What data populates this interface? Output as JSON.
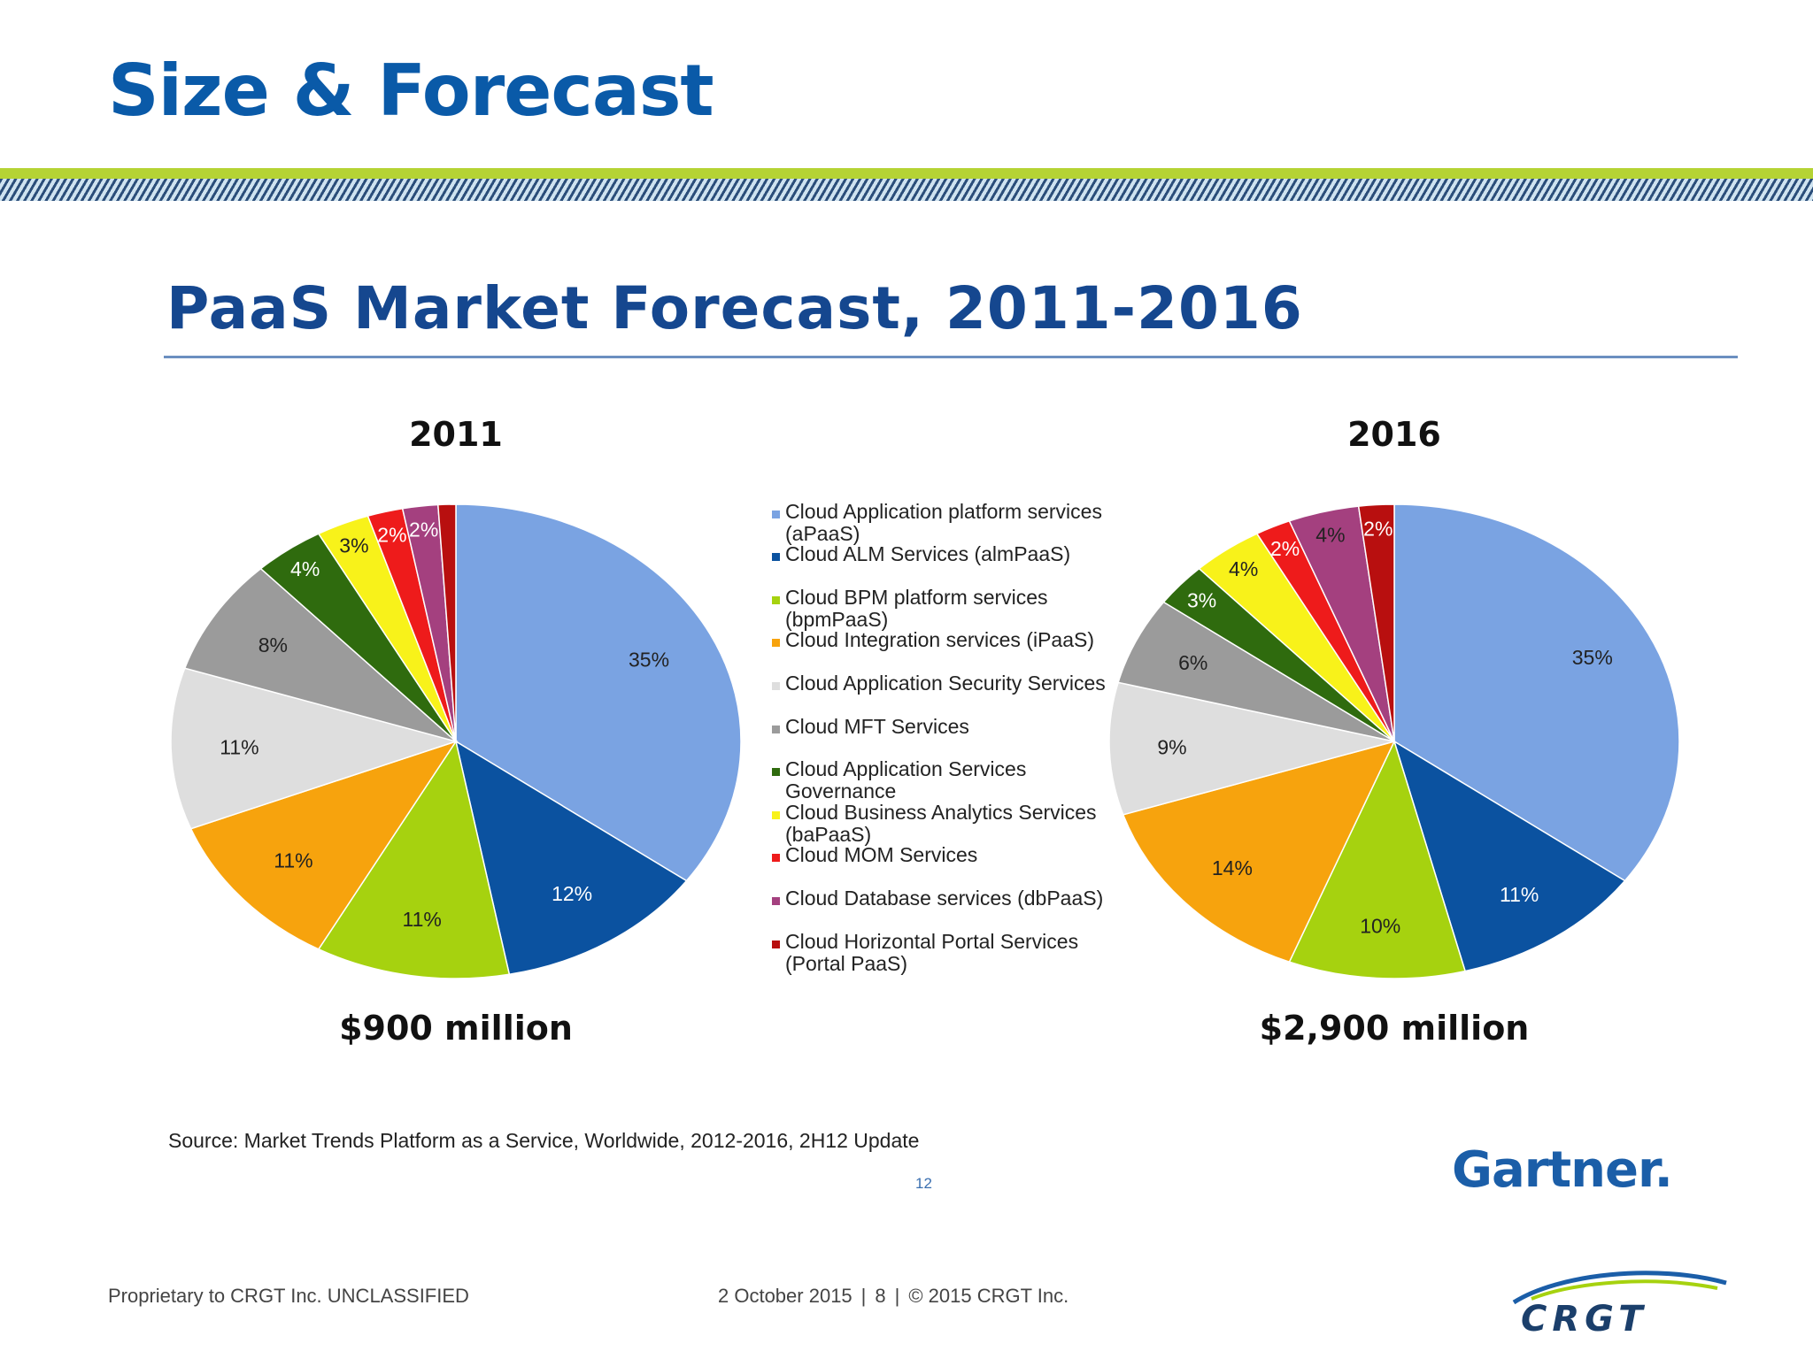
{
  "slide": {
    "title": "Size & Forecast"
  },
  "chart_title": "PaaS Market Forecast, 2011-2016",
  "legend": [
    {
      "label": "Cloud Application platform services (aPaaS)",
      "color": "#7aa3e2"
    },
    {
      "label": "Cloud ALM Services (almPaaS)",
      "color": "#0b52a0"
    },
    {
      "label": "Cloud BPM platform services (bpmPaaS)",
      "color": "#a6d20f"
    },
    {
      "label": "Cloud Integration services (iPaaS)",
      "color": "#f7a30d"
    },
    {
      "label": "Cloud Application Security Services",
      "color": "#dedede"
    },
    {
      "label": "Cloud MFT Services",
      "color": "#9b9b9b"
    },
    {
      "label": "Cloud Application Services Governance",
      "color": "#2f6b0e"
    },
    {
      "label": "Cloud Business Analytics Services (baPaaS)",
      "color": "#f8f21a"
    },
    {
      "label": "Cloud MOM Services",
      "color": "#ee1b1b"
    },
    {
      "label": "Cloud Database services (dbPaaS)",
      "color": "#a4407f"
    },
    {
      "label": "Cloud Horizontal Portal Services (Portal PaaS)",
      "color": "#b80f0f"
    }
  ],
  "chart_data": [
    {
      "type": "pie",
      "title": "2011",
      "total": "$900 million",
      "labels": [
        "Cloud Application platform services (aPaaS)",
        "Cloud ALM Services (almPaaS)",
        "Cloud BPM platform services (bpmPaaS)",
        "Cloud Integration services (iPaaS)",
        "Cloud Application Security Services",
        "Cloud MFT Services",
        "Cloud Application Services Governance",
        "Cloud Business Analytics Services (baPaaS)",
        "Cloud MOM Services",
        "Cloud Database services (dbPaaS)",
        "Cloud Horizontal Portal Services (Portal PaaS)"
      ],
      "values": [
        35,
        12,
        11,
        11,
        11,
        8,
        4,
        3,
        2,
        2,
        1
      ],
      "value_labels": [
        "35%",
        "12%",
        "11%",
        "11%",
        "11%",
        "8%",
        "4%",
        "3%",
        "2%",
        "2%",
        "1%"
      ]
    },
    {
      "type": "pie",
      "title": "2016",
      "total": "$2,900 million",
      "labels": [
        "Cloud Application platform services (aPaaS)",
        "Cloud ALM Services (almPaaS)",
        "Cloud BPM platform services (bpmPaaS)",
        "Cloud Integration services (iPaaS)",
        "Cloud Application Security Services",
        "Cloud MFT Services",
        "Cloud Application Services Governance",
        "Cloud Business Analytics Services (baPaaS)",
        "Cloud MOM Services",
        "Cloud Database services (dbPaaS)",
        "Cloud Horizontal Portal Services (Portal PaaS)"
      ],
      "values": [
        35,
        11,
        10,
        14,
        9,
        6,
        3,
        4,
        2,
        4,
        2
      ],
      "value_labels": [
        "35%",
        "11%",
        "10%",
        "14%",
        "9%",
        "6%",
        "3%",
        "4%",
        "2%",
        "4%",
        "2%"
      ]
    }
  ],
  "source": "Source: Market Trends Platform as a Service, Worldwide, 2012-2016, 2H12 Update",
  "inner_page_number": "12",
  "gartner_logo": "Gartner.",
  "footer": {
    "left": "Proprietary to CRGT Inc. UNCLASSIFIED",
    "date": "2 October 2015",
    "page": "8",
    "copyright": "© 2015 CRGT Inc.",
    "separator": "|"
  },
  "crgt_logo": "CRGT"
}
